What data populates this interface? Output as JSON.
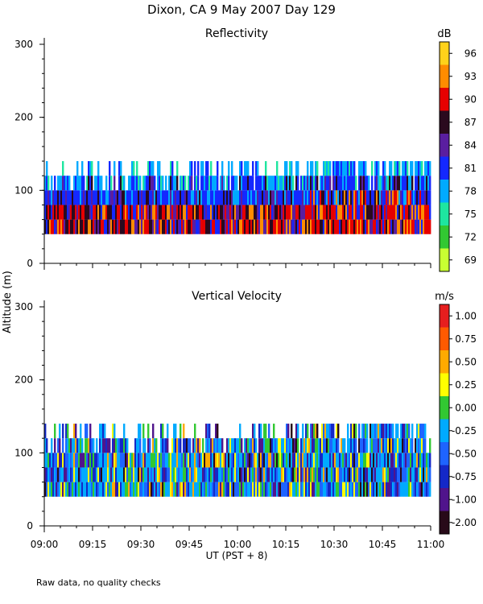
{
  "figure": {
    "title": "Dixon, CA  9 May 2007  Day 129",
    "ylabel": "Altitude (m)",
    "xlabel": "UT  (PST + 8)",
    "footnote": "Raw data, no quality checks"
  },
  "chart_data": [
    {
      "type": "heatmap",
      "title": "Reflectivity",
      "colorbar_unit": "dB",
      "colorbar_ticks": [
        "96",
        "93",
        "90",
        "87",
        "84",
        "81",
        "78",
        "75",
        "72",
        "69"
      ],
      "colorbar_colors": [
        "#ffd21a",
        "#ff8c00",
        "#e60000",
        "#2a0a1e",
        "#5a1ea0",
        "#1428ff",
        "#00aaff",
        "#1ee6a0",
        "#32c832",
        "#c8ff32"
      ],
      "y_ticks": [
        "0",
        "100",
        "200",
        "300"
      ],
      "ylim": [
        0,
        300
      ],
      "x_ticks": [
        "09:00",
        "09:15",
        "09:30",
        "09:45",
        "10:00",
        "10:15",
        "10:30",
        "10:45",
        "11:00"
      ],
      "xlim_hours": [
        9.0,
        11.0
      ],
      "data_base_m": 40,
      "data_top_m": 120,
      "data_top_late_m": 140
    },
    {
      "type": "heatmap",
      "title": "Vertical Velocity",
      "colorbar_unit": "m/s",
      "colorbar_ticks": [
        "1.00",
        "0.75",
        "0.50",
        "0.25",
        "0.00",
        "-0.25",
        "-0.50",
        "-0.75",
        "-1.00",
        "-2.00"
      ],
      "colorbar_colors": [
        "#e61e1e",
        "#ff5a00",
        "#ffaa00",
        "#ffff00",
        "#32c832",
        "#00aaff",
        "#1e64ff",
        "#1428c8",
        "#50148c",
        "#280a19"
      ],
      "y_ticks": [
        "0",
        "100",
        "200",
        "300"
      ],
      "ylim": [
        0,
        300
      ],
      "x_ticks": [
        "09:00",
        "09:15",
        "09:30",
        "09:45",
        "10:00",
        "10:15",
        "10:30",
        "10:45",
        "11:00"
      ],
      "xlim_hours": [
        9.0,
        11.0
      ],
      "data_base_m": 40,
      "data_top_m": 120,
      "data_top_late_m": 140
    }
  ]
}
